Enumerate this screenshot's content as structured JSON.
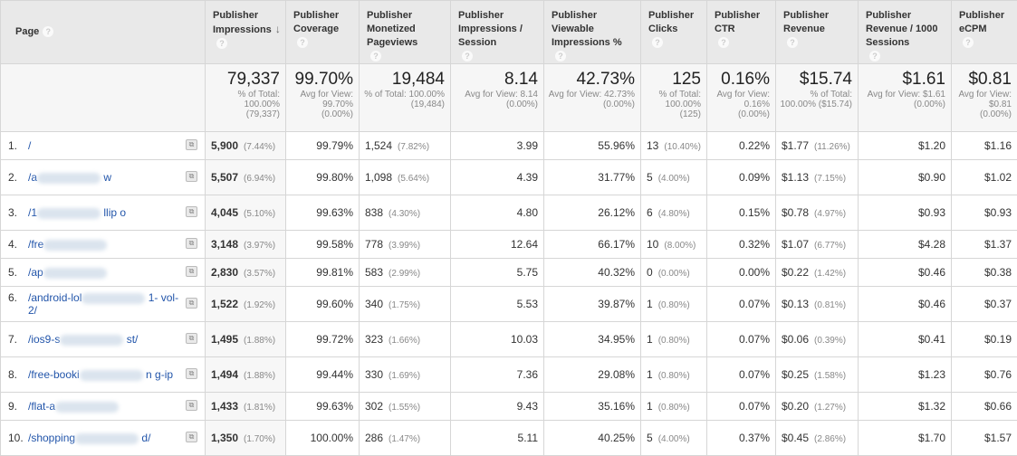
{
  "columns": [
    {
      "label": "Page",
      "help": "?"
    },
    {
      "label": "Publisher Impressions",
      "help": "?",
      "sort_icon": "arrow-down-icon"
    },
    {
      "label": "Publisher Coverage",
      "help": "?"
    },
    {
      "label": "Publisher Monetized Pageviews",
      "help": "?"
    },
    {
      "label": "Publisher Impressions / Session",
      "help": "?"
    },
    {
      "label": "Publisher Viewable Impressions %",
      "help": "?"
    },
    {
      "label": "Publisher Clicks",
      "help": "?"
    },
    {
      "label": "Publisher CTR",
      "help": "?"
    },
    {
      "label": "Publisher Revenue",
      "help": "?"
    },
    {
      "label": "Publisher Revenue / 1000 Sessions",
      "help": "?"
    },
    {
      "label": "Publisher eCPM",
      "help": "?"
    }
  ],
  "totals": [
    {
      "value": "79,337",
      "sub": "% of Total: 100.00% (79,337)"
    },
    {
      "value": "99.70%",
      "sub": "Avg for View: 99.70% (0.00%)"
    },
    {
      "value": "19,484",
      "sub": "% of Total: 100.00% (19,484)"
    },
    {
      "value": "8.14",
      "sub": "Avg for View: 8.14 (0.00%)"
    },
    {
      "value": "42.73%",
      "sub": "Avg for View: 42.73% (0.00%)"
    },
    {
      "value": "125",
      "sub": "% of Total: 100.00% (125)"
    },
    {
      "value": "0.16%",
      "sub": "Avg for View: 0.16% (0.00%)"
    },
    {
      "value": "$15.74",
      "sub": "% of Total: 100.00% ($15.74)"
    },
    {
      "value": "$1.61",
      "sub": "Avg for View: $1.61 (0.00%)"
    },
    {
      "value": "$0.81",
      "sub": "Avg for View: $0.81 (0.00%)"
    }
  ],
  "rows": [
    {
      "index": "1.",
      "page_start": "/",
      "page_end": "",
      "blurred": false,
      "impressions": "5,900",
      "impressions_pct": "(7.44%)",
      "coverage": "99.79%",
      "monetized": "1,524",
      "monetized_pct": "(7.82%)",
      "per_session": "3.99",
      "viewable": "55.96%",
      "clicks": "13",
      "clicks_pct": "(10.40%)",
      "ctr": "0.22%",
      "revenue": "$1.77",
      "revenue_pct": "(11.26%)",
      "rev_per_1000": "$1.20",
      "ecpm": "$1.16"
    },
    {
      "index": "2.",
      "page_start": "/a",
      "page_end": "w",
      "blurred": true,
      "impressions": "5,507",
      "impressions_pct": "(6.94%)",
      "coverage": "99.80%",
      "monetized": "1,098",
      "monetized_pct": "(5.64%)",
      "per_session": "4.39",
      "viewable": "31.77%",
      "clicks": "5",
      "clicks_pct": "(4.00%)",
      "ctr": "0.09%",
      "revenue": "$1.13",
      "revenue_pct": "(7.15%)",
      "rev_per_1000": "$0.90",
      "ecpm": "$1.02"
    },
    {
      "index": "3.",
      "page_start": "/1",
      "page_end": "llip o",
      "blurred": true,
      "impressions": "4,045",
      "impressions_pct": "(5.10%)",
      "coverage": "99.63%",
      "monetized": "838",
      "monetized_pct": "(4.30%)",
      "per_session": "4.80",
      "viewable": "26.12%",
      "clicks": "6",
      "clicks_pct": "(4.80%)",
      "ctr": "0.15%",
      "revenue": "$0.78",
      "revenue_pct": "(4.97%)",
      "rev_per_1000": "$0.93",
      "ecpm": "$0.93"
    },
    {
      "index": "4.",
      "page_start": "/fre",
      "page_end": "",
      "blurred": true,
      "impressions": "3,148",
      "impressions_pct": "(3.97%)",
      "coverage": "99.58%",
      "monetized": "778",
      "monetized_pct": "(3.99%)",
      "per_session": "12.64",
      "viewable": "66.17%",
      "clicks": "10",
      "clicks_pct": "(8.00%)",
      "ctr": "0.32%",
      "revenue": "$1.07",
      "revenue_pct": "(6.77%)",
      "rev_per_1000": "$4.28",
      "ecpm": "$1.37"
    },
    {
      "index": "5.",
      "page_start": "/ap",
      "page_end": "",
      "blurred": true,
      "impressions": "2,830",
      "impressions_pct": "(3.57%)",
      "coverage": "99.81%",
      "monetized": "583",
      "monetized_pct": "(2.99%)",
      "per_session": "5.75",
      "viewable": "40.32%",
      "clicks": "0",
      "clicks_pct": "(0.00%)",
      "ctr": "0.00%",
      "revenue": "$0.22",
      "revenue_pct": "(1.42%)",
      "rev_per_1000": "$0.46",
      "ecpm": "$0.38"
    },
    {
      "index": "6.",
      "page_start": "/android-lol",
      "page_end": "1- vol-2/",
      "blurred": true,
      "impressions": "1,522",
      "impressions_pct": "(1.92%)",
      "coverage": "99.60%",
      "monetized": "340",
      "monetized_pct": "(1.75%)",
      "per_session": "5.53",
      "viewable": "39.87%",
      "clicks": "1",
      "clicks_pct": "(0.80%)",
      "ctr": "0.07%",
      "revenue": "$0.13",
      "revenue_pct": "(0.81%)",
      "rev_per_1000": "$0.46",
      "ecpm": "$0.37"
    },
    {
      "index": "7.",
      "page_start": "/ios9-s",
      "page_end": "st/",
      "blurred": true,
      "impressions": "1,495",
      "impressions_pct": "(1.88%)",
      "coverage": "99.72%",
      "monetized": "323",
      "monetized_pct": "(1.66%)",
      "per_session": "10.03",
      "viewable": "34.95%",
      "clicks": "1",
      "clicks_pct": "(0.80%)",
      "ctr": "0.07%",
      "revenue": "$0.06",
      "revenue_pct": "(0.39%)",
      "rev_per_1000": "$0.41",
      "ecpm": "$0.19"
    },
    {
      "index": "8.",
      "page_start": "/free-booki",
      "page_end": "n g-ip",
      "blurred": true,
      "impressions": "1,494",
      "impressions_pct": "(1.88%)",
      "coverage": "99.44%",
      "monetized": "330",
      "monetized_pct": "(1.69%)",
      "per_session": "7.36",
      "viewable": "29.08%",
      "clicks": "1",
      "clicks_pct": "(0.80%)",
      "ctr": "0.07%",
      "revenue": "$0.25",
      "revenue_pct": "(1.58%)",
      "rev_per_1000": "$1.23",
      "ecpm": "$0.76"
    },
    {
      "index": "9.",
      "page_start": "/flat-a",
      "page_end": "",
      "blurred": true,
      "impressions": "1,433",
      "impressions_pct": "(1.81%)",
      "coverage": "99.63%",
      "monetized": "302",
      "monetized_pct": "(1.55%)",
      "per_session": "9.43",
      "viewable": "35.16%",
      "clicks": "1",
      "clicks_pct": "(0.80%)",
      "ctr": "0.07%",
      "revenue": "$0.20",
      "revenue_pct": "(1.27%)",
      "rev_per_1000": "$1.32",
      "ecpm": "$0.66"
    },
    {
      "index": "10.",
      "page_start": "/shopping",
      "page_end": "d/",
      "blurred": true,
      "impressions": "1,350",
      "impressions_pct": "(1.70%)",
      "coverage": "100.00%",
      "monetized": "286",
      "monetized_pct": "(1.47%)",
      "per_session": "5.11",
      "viewable": "40.25%",
      "clicks": "5",
      "clicks_pct": "(4.00%)",
      "ctr": "0.37%",
      "revenue": "$0.45",
      "revenue_pct": "(2.86%)",
      "rev_per_1000": "$1.70",
      "ecpm": "$1.57"
    }
  ],
  "row_icon": "open-in-new-window-icon",
  "row_icon_glyph": "⧉"
}
